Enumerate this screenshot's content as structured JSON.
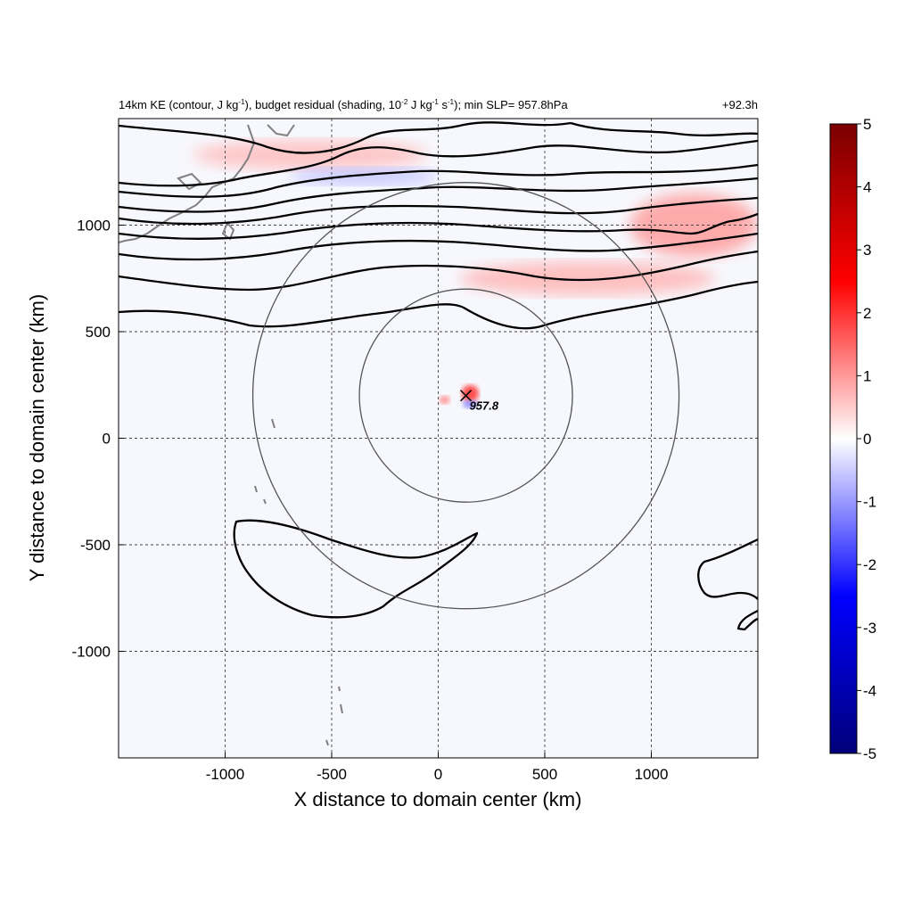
{
  "chart_data": {
    "type": "heatmap",
    "title_left": "14km KE (contour, J kg-1), budget residual (shading, 10-2 J kg-1 s-1); min SLP= 957.8hPa",
    "title_left_parts": {
      "a": "14km KE (contour, J kg",
      "b": "-1",
      "c": "), budget residual (shading, 10",
      "d": "-2",
      "e": " J kg",
      "f": "-1",
      "g": " s",
      "h": "-1",
      "i": "); min SLP= 957.8hPa"
    },
    "title_right": "+92.3h",
    "xlabel": "X distance to domain center (km)",
    "ylabel": "Y distance to domain center (km)",
    "xlim": [
      -1500,
      1500
    ],
    "ylim": [
      -1500,
      1500
    ],
    "xticks": [
      -1000,
      -500,
      0,
      500,
      1000
    ],
    "xtick_labels": [
      "-1000",
      "-500",
      "0",
      "500",
      "1000"
    ],
    "yticks": [
      -1000,
      -500,
      0,
      500,
      1000
    ],
    "ytick_labels": [
      "-1000",
      "-500",
      "0",
      "500",
      "1000"
    ],
    "grid": true,
    "colorbar": {
      "range": [
        -5,
        5
      ],
      "ticks": [
        5,
        4,
        3,
        2,
        1,
        0,
        -1,
        -2,
        -3,
        -4,
        -5
      ],
      "tick_labels": [
        "5",
        "4",
        "3",
        "2",
        "1",
        "0",
        "-1",
        "-2",
        "-3",
        "-4",
        "-5"
      ],
      "colors": [
        "#00007a",
        "#0000ff",
        "#ffffff",
        "#ff0000",
        "#7a0000"
      ]
    },
    "storm_center": {
      "x": 130,
      "y": 200,
      "label": "957.8"
    },
    "circles_radius_km": [
      500,
      1000
    ],
    "shading_features": [
      {
        "name": "jet-band-north",
        "x": -600,
        "y": 1330,
        "rx": 550,
        "ry": 70,
        "value": 0.8
      },
      {
        "name": "jet-band-negative",
        "x": -350,
        "y": 1230,
        "rx": 350,
        "ry": 40,
        "value": -0.8
      },
      {
        "name": "jet-band-east",
        "x": 1200,
        "y": 1000,
        "rx": 300,
        "ry": 150,
        "value": 1.2
      },
      {
        "name": "jet-band-south",
        "x": 700,
        "y": 750,
        "rx": 600,
        "ry": 80,
        "value": 0.9
      },
      {
        "name": "eye-positive",
        "x": 150,
        "y": 210,
        "rx": 40,
        "ry": 40,
        "value": 2.5
      },
      {
        "name": "eye-negative",
        "x": 150,
        "y": 160,
        "rx": 35,
        "ry": 20,
        "value": -1.5
      },
      {
        "name": "eye-positive-west",
        "x": 30,
        "y": 180,
        "rx": 25,
        "ry": 20,
        "value": 1.5
      }
    ]
  }
}
